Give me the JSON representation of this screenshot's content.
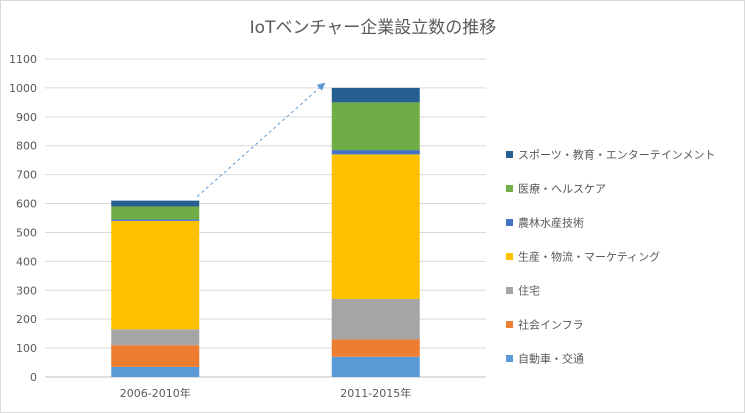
{
  "chart_data": {
    "type": "bar",
    "stacked": true,
    "title": "IoTベンチャー企業設立数の推移",
    "xlabel": "",
    "ylabel": "",
    "ylim": [
      0,
      1100
    ],
    "yticks": [
      0,
      100,
      200,
      300,
      400,
      500,
      600,
      700,
      800,
      900,
      1000,
      1100
    ],
    "grid": true,
    "legend_position": "right",
    "categories": [
      "2006-2010年",
      "2011-2015年"
    ],
    "series": [
      {
        "name": "自動車・交通",
        "color": "#5b9bd5",
        "values": [
          35,
          70
        ]
      },
      {
        "name": "社会インフラ",
        "color": "#ed7d31",
        "values": [
          75,
          60
        ]
      },
      {
        "name": "住宅",
        "color": "#a5a5a5",
        "values": [
          55,
          140
        ]
      },
      {
        "name": "生産・物流・マーケティング",
        "color": "#ffc000",
        "values": [
          375,
          500
        ]
      },
      {
        "name": "農林水産技術",
        "color": "#4472c4",
        "values": [
          5,
          15
        ]
      },
      {
        "name": "医療・ヘルスケア",
        "color": "#70ad47",
        "values": [
          45,
          165
        ]
      },
      {
        "name": "スポーツ・教育・エンターテインメント",
        "color": "#255e91",
        "values": [
          20,
          50
        ]
      }
    ],
    "annotation": {
      "type": "dashed-arrow",
      "from_category": "2006-2010年",
      "to_category": "2011-2015年",
      "color": "#5b9bd5"
    }
  }
}
